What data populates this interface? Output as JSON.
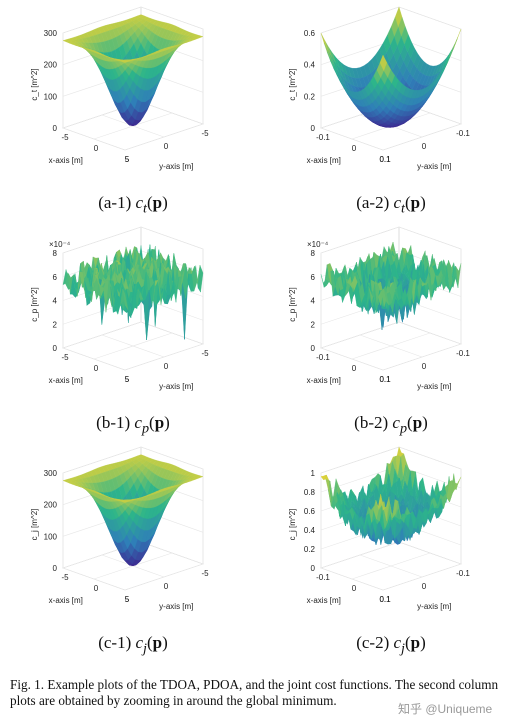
{
  "panels": [
    {
      "id": "a1",
      "caption_prefix": "(a-1)",
      "fn_sym": "c",
      "fn_sub": "t",
      "fn_arg": "p",
      "zlabel": "c_t [m^2]",
      "zticks": [
        "300",
        "200",
        "100",
        "0"
      ],
      "zexp": "",
      "xlabel": "x-axis [m]",
      "ylabel": "y-axis [m]",
      "xticks": [
        "-5",
        "0",
        "5"
      ],
      "yticks": [
        "-5",
        "0",
        "5"
      ],
      "shape": "bowl-peaks",
      "noise": 0.02
    },
    {
      "id": "a2",
      "caption_prefix": "(a-2)",
      "fn_sym": "c",
      "fn_sub": "t",
      "fn_arg": "p",
      "zlabel": "c_t [m^2]",
      "zticks": [
        "0.6",
        "0.4",
        "0.2",
        "0"
      ],
      "zexp": "",
      "xlabel": "x-axis [m]",
      "ylabel": "y-axis [m]",
      "xticks": [
        "-0.1",
        "0",
        "0.1"
      ],
      "yticks": [
        "-0.1",
        "0",
        "0.1"
      ],
      "shape": "paraboloid",
      "noise": 0
    },
    {
      "id": "b1",
      "caption_prefix": "(b-1)",
      "fn_sym": "c",
      "fn_sub": "p",
      "fn_arg": "p",
      "zlabel": "c_p [m^2]",
      "zticks": [
        "8",
        "6",
        "4",
        "2",
        "0"
      ],
      "zexp": "×10⁻⁴",
      "xlabel": "x-axis [m]",
      "ylabel": "y-axis [m]",
      "xticks": [
        "-5",
        "0",
        "5"
      ],
      "yticks": [
        "-5",
        "0",
        "5"
      ],
      "shape": "flat-noise",
      "noise": 0.35
    },
    {
      "id": "b2",
      "caption_prefix": "(b-2)",
      "fn_sym": "c",
      "fn_sub": "p",
      "fn_arg": "p",
      "zlabel": "c_p [m^2]",
      "zticks": [
        "8",
        "6",
        "4",
        "2",
        "0"
      ],
      "zexp": "×10⁻⁴",
      "xlabel": "x-axis [m]",
      "ylabel": "y-axis [m]",
      "xticks": [
        "-0.1",
        "0",
        "0.1"
      ],
      "yticks": [
        "-0.1",
        "0",
        "0.1"
      ],
      "shape": "noisy-dip",
      "noise": 0.3
    },
    {
      "id": "c1",
      "caption_prefix": "(c-1)",
      "fn_sym": "c",
      "fn_sub": "j",
      "fn_arg": "p",
      "zlabel": "c_j [m^2]",
      "zticks": [
        "300",
        "200",
        "100",
        "0"
      ],
      "zexp": "",
      "xlabel": "x-axis [m]",
      "ylabel": "y-axis [m]",
      "xticks": [
        "-5",
        "0",
        "5"
      ],
      "yticks": [
        "-5",
        "0",
        "5"
      ],
      "shape": "bowl-peaks",
      "noise": 0.02
    },
    {
      "id": "c2",
      "caption_prefix": "(c-2)",
      "fn_sym": "c",
      "fn_sub": "j",
      "fn_arg": "p",
      "zlabel": "c_j [m^2]",
      "zticks": [
        "1",
        "0.8",
        "0.6",
        "0.4",
        "0.2",
        "0"
      ],
      "zexp": "",
      "xlabel": "x-axis [m]",
      "ylabel": "y-axis [m]",
      "xticks": [
        "-0.1",
        "0",
        "0.1"
      ],
      "yticks": [
        "-0.1",
        "0",
        "0.1"
      ],
      "shape": "noisy-paraboloid",
      "noise": 0.25
    }
  ],
  "figure_caption": "Fig. 1.   Example plots of the TDOA, PDOA, and the joint cost functions. The second column plots are obtained by zooming in around the global minimum.",
  "watermark": "知乎 @Uniqueme",
  "colors": {
    "low": "#3e1f8c",
    "mid1": "#2f7fb8",
    "mid2": "#2db58a",
    "high": "#f5d52e"
  }
}
